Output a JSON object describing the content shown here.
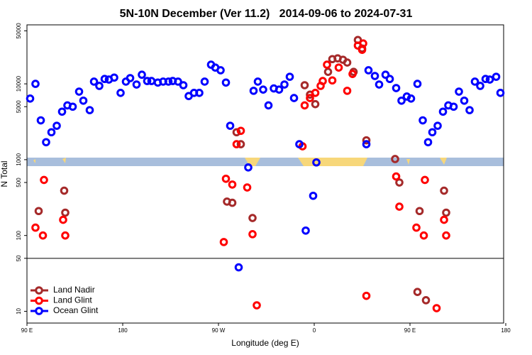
{
  "chart_data": {
    "type": "scatter",
    "title": "5N-10N December (Ver 11.2)   2014-09-06 to 2024-07-31",
    "x_label": "Longitude (deg E)",
    "y_label": "N Total",
    "xlim": [
      90,
      538
    ],
    "xticks": [
      {
        "value": 90,
        "label": "90 E"
      },
      {
        "value": 180,
        "label": "180"
      },
      {
        "value": 270,
        "label": "90 W"
      },
      {
        "value": 360,
        "label": "0"
      },
      {
        "value": 450,
        "label": "90 E"
      },
      {
        "value": 540,
        "label": "180"
      }
    ],
    "ylim": [
      7,
      60000
    ],
    "log_y": true,
    "yticks": [
      10,
      50,
      100,
      500,
      1000,
      5000,
      10000,
      50000
    ],
    "reference_line": 50,
    "legend": "bottom-left",
    "series": [
      {
        "name": "Land Nadir",
        "color": "#a52a2a",
        "x": [
          101,
          125,
          126,
          278,
          283,
          287,
          291,
          302,
          351,
          356,
          361,
          373,
          377,
          382,
          387,
          391,
          397,
          401,
          405,
          409,
          436,
          440,
          459,
          465,
          457,
          482,
          484
        ],
        "values": [
          210,
          390,
          200,
          280,
          270,
          2300,
          1600,
          170,
          9600,
          7200,
          5400,
          14400,
          21200,
          21700,
          20800,
          19100,
          14400,
          37900,
          29300,
          1800,
          1020,
          500,
          210,
          14,
          18,
          390,
          200
        ]
      },
      {
        "name": "Land Glint",
        "color": "#ff0000",
        "x": [
          98,
          105,
          106,
          124,
          126,
          275,
          277,
          283,
          291,
          287,
          297,
          302,
          306,
          349,
          351,
          356,
          361,
          366,
          368,
          372,
          377,
          383,
          391,
          396,
          401,
          406,
          405,
          409,
          437,
          440,
          456,
          463,
          464,
          475,
          482,
          484
        ],
        "values": [
          127,
          100,
          540,
          161,
          100,
          82,
          560,
          470,
          2400,
          1600,
          430,
          104,
          12,
          1500,
          5200,
          6500,
          7600,
          9400,
          10900,
          17900,
          11100,
          16400,
          8100,
          13500,
          32000,
          34100,
          28100,
          16,
          600,
          240,
          127,
          100,
          540,
          11,
          161,
          100
        ]
      },
      {
        "name": "Ocean Glint",
        "color": "#0000ff",
        "x": [
          93,
          98,
          103,
          108,
          113,
          118,
          123,
          128,
          133,
          139,
          143,
          149,
          153,
          158,
          163,
          167,
          172,
          178,
          183,
          187,
          193,
          198,
          203,
          207,
          213,
          218,
          223,
          227,
          232,
          237,
          242,
          247,
          252,
          257,
          263,
          267,
          272,
          277,
          281,
          289,
          298,
          303,
          307,
          312,
          317,
          322,
          327,
          332,
          337,
          341,
          346,
          352,
          359,
          362,
          409,
          411,
          417,
          421,
          427,
          431,
          437,
          442,
          447,
          451,
          457,
          462,
          467,
          471,
          476,
          481,
          486,
          491,
          496,
          501,
          506,
          511,
          516,
          521,
          525,
          531,
          535
        ],
        "values": [
          6400,
          10000,
          3300,
          1700,
          2300,
          2800,
          4300,
          5200,
          5000,
          7900,
          6000,
          4500,
          10700,
          9400,
          11600,
          11400,
          12100,
          7600,
          10700,
          11900,
          9800,
          13200,
          10900,
          10900,
          10400,
          10700,
          10700,
          10900,
          10700,
          9600,
          6900,
          7600,
          7600,
          10700,
          17900,
          16400,
          15100,
          10400,
          2800,
          38,
          790,
          8100,
          10700,
          8400,
          5200,
          8700,
          8400,
          9800,
          12400,
          6500,
          1600,
          116,
          334,
          920,
          1600,
          15100,
          12700,
          9800,
          13200,
          11600,
          8800,
          6000,
          6800,
          6400,
          10000,
          3300,
          1700,
          2300,
          2800,
          4300,
          5200,
          5000,
          7900,
          6000,
          4500,
          10700,
          9400,
          11600,
          11400,
          12400,
          7600
        ]
      }
    ]
  }
}
